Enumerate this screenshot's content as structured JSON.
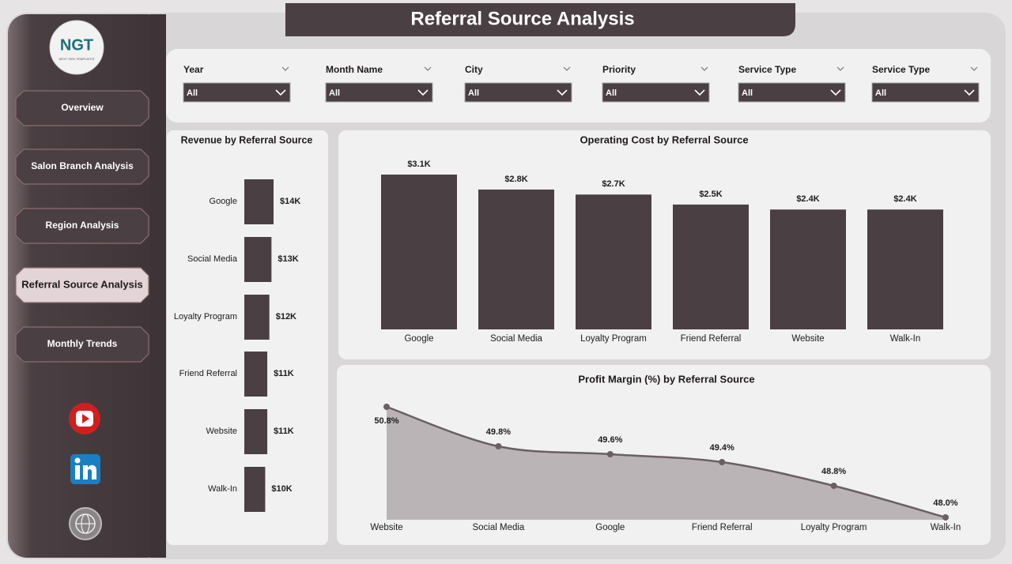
{
  "header": {
    "title": "Referral Source Analysis"
  },
  "logo": {
    "text": "NGT",
    "subtext": "NEXT GEN TEMPLATES"
  },
  "nav": [
    {
      "label": "Overview",
      "active": false
    },
    {
      "label": "Salon Branch Analysis",
      "active": false
    },
    {
      "label": "Region Analysis",
      "active": false
    },
    {
      "label": "Referral Source Analysis",
      "active": true
    },
    {
      "label": "Monthly Trends",
      "active": false
    }
  ],
  "filters": [
    {
      "label": "Year",
      "value": "All"
    },
    {
      "label": "Month Name",
      "value": "All"
    },
    {
      "label": "City",
      "value": "All"
    },
    {
      "label": "Priority",
      "value": "All"
    },
    {
      "label": "Service Type",
      "value": "All"
    },
    {
      "label": "Service Type",
      "value": "All"
    }
  ],
  "chart_data": [
    {
      "type": "hbar",
      "title": "Revenue by Referral Source",
      "color": "#4a3f42",
      "categories": [
        "Google",
        "Social Media",
        "Loyalty Program",
        "Friend Referral",
        "Website",
        "Walk-In"
      ],
      "values": [
        14000,
        13000,
        12000,
        11000,
        11000,
        10000
      ],
      "value_labels": [
        "$14K",
        "$13K",
        "$12K",
        "$11K",
        "$11K",
        "$10K"
      ]
    },
    {
      "type": "bar",
      "title": "Operating Cost by Referral Source",
      "color": "#4a3f42",
      "categories": [
        "Google",
        "Social Media",
        "Loyalty Program",
        "Friend Referral",
        "Website",
        "Walk-In"
      ],
      "values": [
        3100,
        2800,
        2700,
        2500,
        2400,
        2400
      ],
      "value_labels": [
        "$3.1K",
        "$2.8K",
        "$2.7K",
        "$2.5K",
        "$2.4K",
        "$2.4K"
      ]
    },
    {
      "type": "area",
      "title": "Profit Margin (%) by Referral Source",
      "color": "#6b5f62",
      "fill": "#bab4b6",
      "categories": [
        "Website",
        "Social Media",
        "Google",
        "Friend Referral",
        "Loyalty Program",
        "Walk-In"
      ],
      "values": [
        50.8,
        49.8,
        49.6,
        49.4,
        48.8,
        48.0
      ],
      "value_labels": [
        "50.8%",
        "49.8%",
        "49.6%",
        "49.4%",
        "48.8%",
        "48.0%"
      ]
    }
  ]
}
